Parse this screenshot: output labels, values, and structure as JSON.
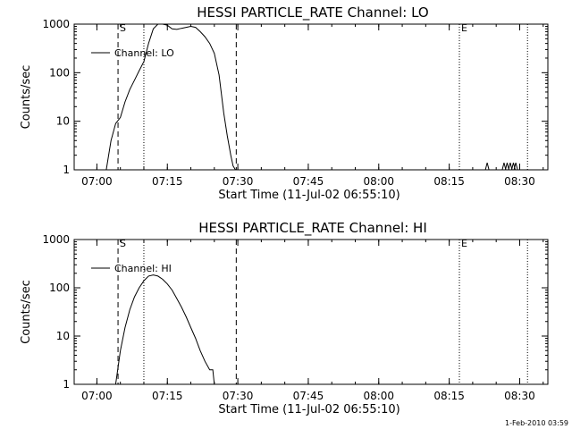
{
  "timestamp": "1-Feb-2010 03:59",
  "chart_data": [
    {
      "type": "line",
      "title": "HESSI PARTICLE_RATE Channel: LO",
      "xlabel": "Start Time (11-Jul-02 06:55:10)",
      "ylabel": "Counts/sec",
      "yscale": "log",
      "ylim": [
        1,
        1000
      ],
      "xlim_minutes": [
        "06:55:10",
        "08:36:00"
      ],
      "x_ticks": [
        "07:00",
        "07:15",
        "07:30",
        "07:45",
        "08:00",
        "08:15",
        "08:30"
      ],
      "y_ticks": [
        "1",
        "10",
        "100",
        "1000"
      ],
      "legend": {
        "position": "top-left",
        "label": "Channel: LO"
      },
      "markers": {
        "start": "S",
        "end": "E"
      },
      "vlines": [
        {
          "time": "07:04:30",
          "style": "dashed"
        },
        {
          "time": "07:10:00",
          "style": "dotted"
        },
        {
          "time": "07:29:40",
          "style": "dashed"
        },
        {
          "time": "08:17:10",
          "style": "dotted"
        },
        {
          "time": "08:31:40",
          "style": "dotted"
        }
      ],
      "series": [
        {
          "name": "Channel: LO",
          "points": [
            [
              "07:02:00",
              1
            ],
            [
              "07:03:00",
              4
            ],
            [
              "07:04:00",
              9
            ],
            [
              "07:05:00",
              12
            ],
            [
              "07:06:00",
              25
            ],
            [
              "07:07:00",
              45
            ],
            [
              "07:08:00",
              70
            ],
            [
              "07:09:00",
              110
            ],
            [
              "07:10:00",
              170
            ],
            [
              "07:11:00",
              400
            ],
            [
              "07:12:00",
              800
            ],
            [
              "07:13:00",
              1000
            ],
            [
              "07:14:00",
              1000
            ],
            [
              "07:15:00",
              950
            ],
            [
              "07:16:00",
              800
            ],
            [
              "07:17:00",
              780
            ],
            [
              "07:18:00",
              820
            ],
            [
              "07:19:00",
              860
            ],
            [
              "07:20:00",
              900
            ],
            [
              "07:21:00",
              860
            ],
            [
              "07:22:00",
              700
            ],
            [
              "07:23:00",
              550
            ],
            [
              "07:24:00",
              400
            ],
            [
              "07:25:00",
              250
            ],
            [
              "07:26:00",
              90
            ],
            [
              "07:27:00",
              15
            ],
            [
              "07:27:45",
              5
            ],
            [
              "07:28:30",
              2
            ],
            [
              "07:29:00",
              1.2
            ],
            [
              "07:29:30",
              1
            ]
          ],
          "spikes": [
            [
              "08:23:05",
              1.4
            ],
            [
              "08:26:40",
              1.4
            ],
            [
              "08:27:20",
              1.4
            ],
            [
              "08:28:00",
              1.4
            ],
            [
              "08:28:40",
              1.4
            ],
            [
              "08:29:10",
              1.4
            ]
          ]
        }
      ]
    },
    {
      "type": "line",
      "title": "HESSI PARTICLE_RATE Channel: HI",
      "xlabel": "Start Time (11-Jul-02 06:55:10)",
      "ylabel": "Counts/sec",
      "yscale": "log",
      "ylim": [
        1,
        1000
      ],
      "xlim_minutes": [
        "06:55:10",
        "08:36:00"
      ],
      "x_ticks": [
        "07:00",
        "07:15",
        "07:30",
        "07:45",
        "08:00",
        "08:15",
        "08:30"
      ],
      "y_ticks": [
        "1",
        "10",
        "100",
        "1000"
      ],
      "legend": {
        "position": "top-left",
        "label": "Channel: HI"
      },
      "markers": {
        "start": "S",
        "end": "E"
      },
      "vlines": [
        {
          "time": "07:04:30",
          "style": "dashed"
        },
        {
          "time": "07:10:00",
          "style": "dotted"
        },
        {
          "time": "07:29:40",
          "style": "dashed"
        },
        {
          "time": "08:17:10",
          "style": "dotted"
        },
        {
          "time": "08:31:40",
          "style": "dotted"
        }
      ],
      "series": [
        {
          "name": "Channel: HI",
          "points": [
            [
              "07:04:00",
              1
            ],
            [
              "07:05:00",
              5
            ],
            [
              "07:06:00",
              15
            ],
            [
              "07:07:00",
              35
            ],
            [
              "07:08:00",
              65
            ],
            [
              "07:09:00",
              100
            ],
            [
              "07:10:00",
              140
            ],
            [
              "07:11:00",
              175
            ],
            [
              "07:12:00",
              185
            ],
            [
              "07:13:00",
              175
            ],
            [
              "07:14:00",
              150
            ],
            [
              "07:15:00",
              120
            ],
            [
              "07:16:00",
              90
            ],
            [
              "07:17:00",
              60
            ],
            [
              "07:18:00",
              40
            ],
            [
              "07:19:00",
              25
            ],
            [
              "07:20:00",
              15
            ],
            [
              "07:21:00",
              9
            ],
            [
              "07:22:00",
              5
            ],
            [
              "07:23:00",
              3
            ],
            [
              "07:24:00",
              2
            ],
            [
              "07:24:40",
              2
            ],
            [
              "07:25:00",
              1
            ]
          ],
          "spikes": []
        }
      ]
    }
  ]
}
